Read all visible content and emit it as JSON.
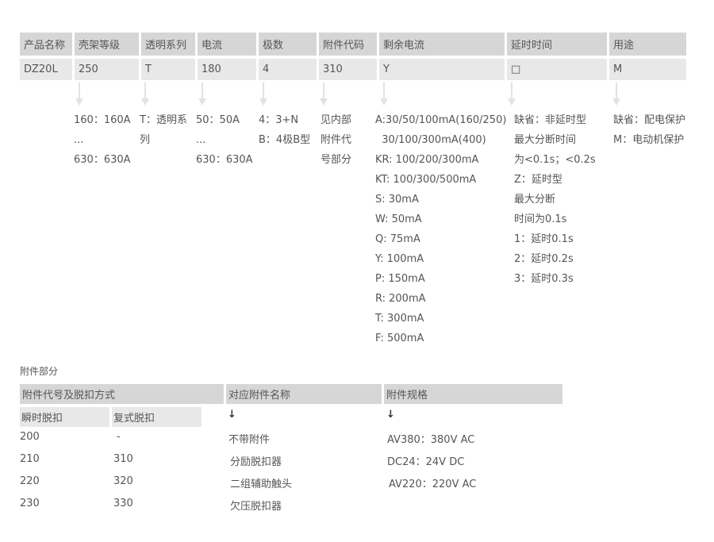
{
  "code_table": {
    "headers": [
      "产品名称",
      "壳架等级",
      "透明系列",
      "电流",
      "极数",
      "附件代码",
      "剩余电流",
      "延时时间",
      "用途"
    ],
    "values": [
      "DZ20L",
      "250",
      "T",
      "180",
      "4",
      "310",
      "Y",
      "□",
      "M"
    ],
    "descriptions": [
      [],
      [
        "160：160A",
        "...",
        "630：630A"
      ],
      [
        "T：透明系",
        "列"
      ],
      [
        "50：50A",
        "...",
        "630：630A"
      ],
      [
        "4：3+N",
        "B：4极B型"
      ],
      [
        "见内部",
        "附件代",
        "号部分"
      ],
      [
        "A:30/50/100mA(160/250)",
        "  30/100/300mA(400)",
        "KR: 100/200/300mA",
        "KT: 100/300/500mA",
        "S: 30mA",
        "W: 50mA",
        "Q: 75mA",
        "Y: 100mA",
        "P: 150mA",
        "R: 200mA",
        "T: 300mA",
        "F: 500mA"
      ],
      [
        "缺省：非延时型",
        "最大分断时间",
        "为<0.1s；<0.2s",
        "Z：延时型",
        "最大分断",
        "时间为0.1s",
        "1：延时0.1s",
        "2：延时0.2s",
        "3：延时0.3s"
      ],
      [
        "缺省：配电保护",
        "M：电动机保护"
      ]
    ]
  },
  "accessory": {
    "section_title": "附件部分",
    "headers": [
      "附件代号及脱扣方式",
      "对应附件名称",
      "附件规格"
    ],
    "subheaders": [
      "瞬时脱扣",
      "复式脱扣"
    ],
    "arrow_glyph": "↓",
    "rows": [
      {
        "instant": "200",
        "compound": "-",
        "name": "不带附件",
        "spec": "AV380：380V AC"
      },
      {
        "instant": "210",
        "compound": "310",
        "name": "分励脱扣器",
        "spec": "DC24：24V DC"
      },
      {
        "instant": "220",
        "compound": "320",
        "name": "二组辅助触头",
        "spec": "AV220：220V AC"
      },
      {
        "instant": "230",
        "compound": "330",
        "name": "欠压脱扣器",
        "spec": ""
      }
    ]
  }
}
